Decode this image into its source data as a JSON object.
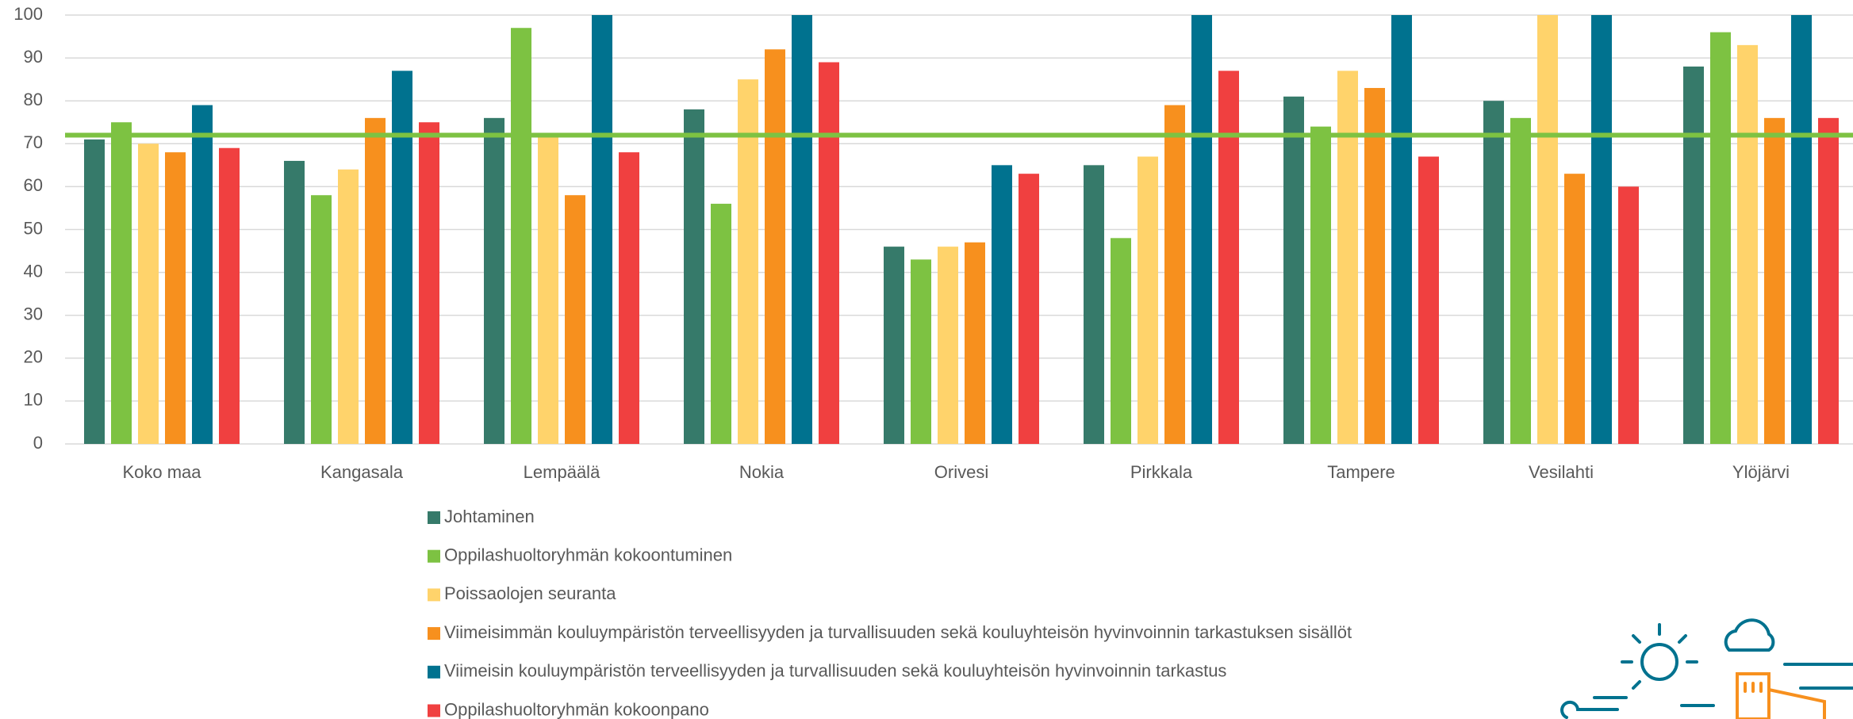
{
  "chart_data": {
    "type": "bar",
    "categories": [
      "Koko maa",
      "Kangasala",
      "Lempäälä",
      "Nokia",
      "Orivesi",
      "Pirkkala",
      "Tampere",
      "Vesilahti",
      "Ylöjärvi"
    ],
    "series": [
      {
        "name": "Johtaminen",
        "color": "#367a6a",
        "values": [
          71,
          66,
          76,
          78,
          46,
          65,
          81,
          80,
          88
        ]
      },
      {
        "name": "Oppilashuoltoryhmän kokoontuminen",
        "color": "#7dc242",
        "values": [
          75,
          58,
          97,
          56,
          43,
          48,
          74,
          76,
          96
        ]
      },
      {
        "name": "Poissaolojen seuranta",
        "color": "#ffd36b",
        "values": [
          70,
          64,
          72,
          85,
          46,
          67,
          87,
          100,
          93
        ]
      },
      {
        "name": "Viimeisimmän kouluympäristön terveellisyyden ja turvallisuuden sekä kouluyhteisön hyvinvoinnin tarkastuksen sisällöt",
        "color": "#f7901e",
        "values": [
          68,
          76,
          58,
          92,
          47,
          79,
          83,
          63,
          76
        ]
      },
      {
        "name": "Viimeisin kouluympäristön terveellisyyden ja turvallisuuden sekä kouluyhteisön hyvinvoinnin tarkastus",
        "color": "#00728f",
        "values": [
          79,
          87,
          100,
          100,
          65,
          100,
          100,
          100,
          100
        ]
      },
      {
        "name": "Oppilashuoltoryhmän kokoonpano",
        "color": "#f04040",
        "values": [
          69,
          75,
          68,
          89,
          63,
          87,
          67,
          60,
          76
        ]
      }
    ],
    "reference_line": {
      "value": 72,
      "color": "#7dc242"
    },
    "ylim": [
      0,
      100
    ],
    "yticks": [
      0,
      10,
      20,
      30,
      40,
      50,
      60,
      70,
      80,
      90,
      100
    ],
    "grid": true,
    "legend": "bottom-left"
  }
}
